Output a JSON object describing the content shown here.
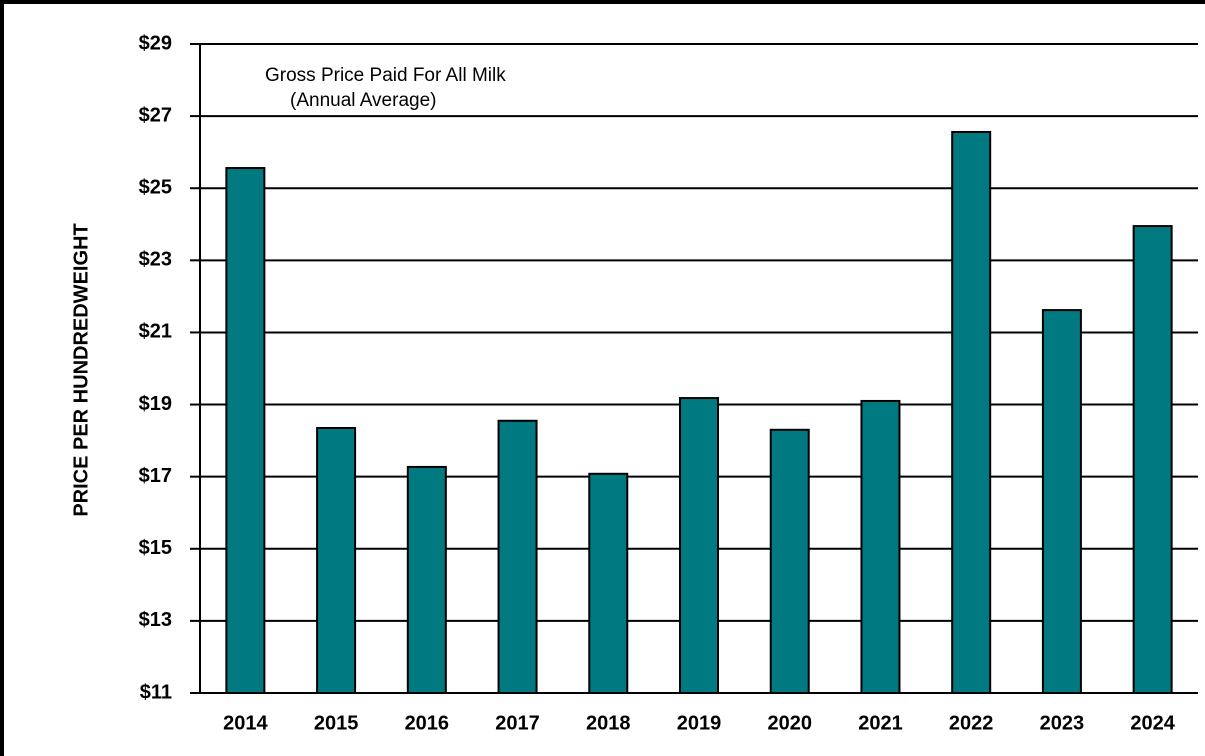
{
  "chart_data": {
    "type": "bar",
    "title": "Gross Price Paid For All Milk",
    "subtitle": "(Annual Average)",
    "y_label": "PRICE  PER  HUNDREDWEIGHT",
    "categories": [
      "2014",
      "2015",
      "2016",
      "2017",
      "2018",
      "2019",
      "2020",
      "2021",
      "2022",
      "2023",
      "2024"
    ],
    "values": [
      25.56,
      18.35,
      17.27,
      18.55,
      17.08,
      19.18,
      18.3,
      19.1,
      26.56,
      21.62,
      23.95
    ],
    "color": "#007a80",
    "ylim": [
      11,
      29
    ],
    "yticks": [
      {
        "value": 11,
        "label": "$11"
      },
      {
        "value": 13,
        "label": "$13"
      },
      {
        "value": 15,
        "label": "$15"
      },
      {
        "value": 17,
        "label": "$17"
      },
      {
        "value": 19,
        "label": "$19"
      },
      {
        "value": 21,
        "label": "$21"
      },
      {
        "value": 23,
        "label": "$23"
      },
      {
        "value": 25,
        "label": "$25"
      },
      {
        "value": 27,
        "label": "$27"
      },
      {
        "value": 29,
        "label": "$29"
      }
    ],
    "grid": true
  }
}
